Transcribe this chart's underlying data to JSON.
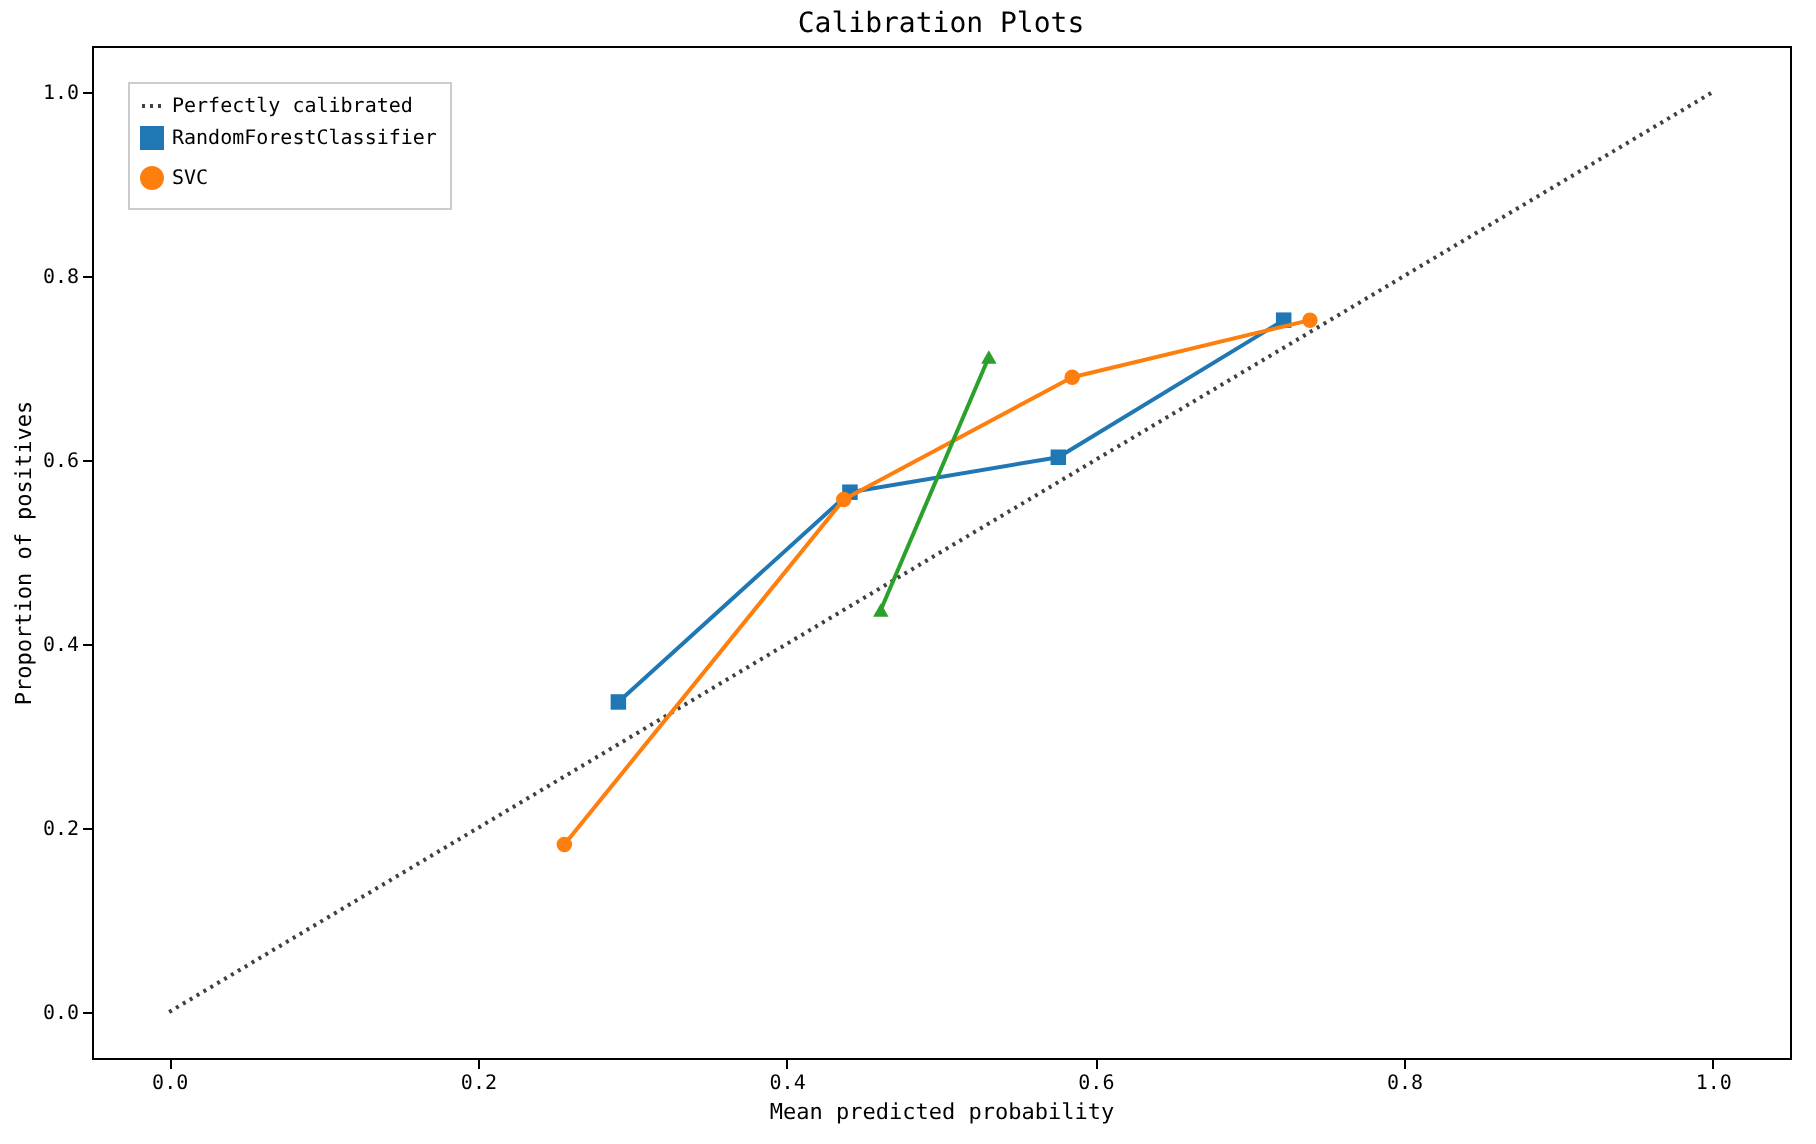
{
  "chart_data": {
    "type": "line",
    "title": "Calibration Plots",
    "xlabel": "Mean predicted probability",
    "ylabel": "Proportion of positives",
    "xlim": [
      -0.05,
      1.05
    ],
    "ylim": [
      -0.05,
      1.05
    ],
    "xticks": [
      {
        "value": 0,
        "label": "0.0"
      },
      {
        "value": 0.2,
        "label": "0.2"
      },
      {
        "value": 0.4,
        "label": "0.4"
      },
      {
        "value": 0.6,
        "label": "0.6"
      },
      {
        "value": 0.8,
        "label": "0.8"
      },
      {
        "value": 1,
        "label": "1.0"
      }
    ],
    "yticks": [
      {
        "value": 0,
        "label": "0.0"
      },
      {
        "value": 0.2,
        "label": "0.2"
      },
      {
        "value": 0.4,
        "label": "0.4"
      },
      {
        "value": 0.6,
        "label": "0.6"
      },
      {
        "value": 0.8,
        "label": "0.8"
      },
      {
        "value": 1,
        "label": "1.0"
      }
    ],
    "grid": false,
    "legend": "top left",
    "series": [
      {
        "name": "Perfectly calibrated",
        "color": "#404040",
        "x": [
          0,
          1
        ],
        "values": [
          0,
          1
        ],
        "line_style": "dotted",
        "marker": "none"
      },
      {
        "name": "RandomForestClassifier",
        "color": "#1f77b4",
        "x": [
          0.291,
          0.441,
          0.576,
          0.722
        ],
        "values": [
          0.337,
          0.565,
          0.603,
          0.752
        ],
        "marker": "square"
      },
      {
        "name": "SVC",
        "color": "#ff7f0e",
        "x": [
          0.256,
          0.437,
          0.585,
          0.739
        ],
        "values": [
          0.182,
          0.557,
          0.69,
          0.752
        ],
        "marker": "circle"
      },
      {
        "color": "#2ca02c",
        "x": [
          0.461,
          0.531
        ],
        "values": [
          0.437,
          0.712
        ],
        "marker": "triangle"
      }
    ]
  }
}
